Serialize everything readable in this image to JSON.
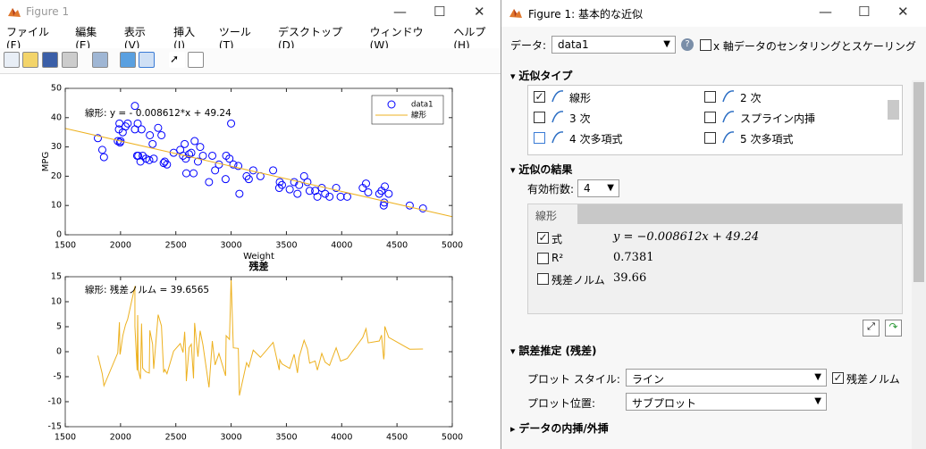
{
  "figure_window": {
    "title": "Figure 1",
    "menu": [
      "ファイル(F)",
      "編集(E)",
      "表示(V)",
      "挿入(I)",
      "ツール(T)",
      "デスクトップ(D)",
      "ウィンドウ(W)",
      "ヘルプ(H)"
    ]
  },
  "chart_data": [
    {
      "type": "scatter",
      "xlabel": "Weight",
      "ylabel": "MPG",
      "annotation": "線形:  y = - 0.008612*x + 49.24",
      "xlim": [
        1500,
        5000
      ],
      "ylim": [
        0,
        50
      ],
      "xticks": [
        1500,
        2000,
        2500,
        3000,
        3500,
        4000,
        4500,
        5000
      ],
      "yticks": [
        0,
        10,
        20,
        30,
        40,
        50
      ],
      "legend": "northeast",
      "series": [
        {
          "name": "data1",
          "type": "scatter",
          "color": "#0000ff",
          "x": [
            1795,
            1835,
            1850,
            1975,
            1985,
            1990,
            1995,
            2000,
            2020,
            2045,
            2065,
            2130,
            2130,
            2150,
            2155,
            2160,
            2180,
            2190,
            2200,
            2230,
            2260,
            2265,
            2290,
            2300,
            2340,
            2370,
            2390,
            2400,
            2420,
            2480,
            2540,
            2565,
            2580,
            2590,
            2595,
            2620,
            2640,
            2660,
            2670,
            2700,
            2720,
            2745,
            2800,
            2830,
            2855,
            2890,
            2950,
            2955,
            2985,
            3000,
            3020,
            3065,
            3075,
            3140,
            3160,
            3200,
            3265,
            3380,
            3435,
            3440,
            3460,
            3530,
            3570,
            3600,
            3615,
            3660,
            3690,
            3710,
            3760,
            3780,
            3820,
            3850,
            3890,
            3950,
            3990,
            4050,
            4190,
            4220,
            4240,
            4340,
            4360,
            4380,
            4385,
            4390,
            4425,
            4615,
            4735
          ],
          "values": [
            33,
            29,
            26.5,
            32,
            36,
            38,
            31.5,
            32,
            35,
            37,
            38,
            44,
            36,
            27,
            38,
            27,
            25,
            36,
            27,
            26,
            25.5,
            34,
            31,
            26,
            36.5,
            34,
            24.5,
            25,
            24,
            28,
            29,
            27,
            31,
            26,
            21,
            27.5,
            28,
            21,
            32,
            25,
            30,
            27,
            18,
            27,
            22,
            24,
            19,
            27,
            26,
            38,
            24,
            23.5,
            14,
            20,
            19,
            22,
            20,
            22,
            16,
            18,
            17,
            15.5,
            18,
            14,
            17,
            20,
            18,
            15,
            15,
            13,
            16,
            14,
            13,
            16,
            13,
            13,
            16,
            17.5,
            14.5,
            14,
            15,
            10,
            11,
            16.5,
            14,
            10,
            9
          ]
        },
        {
          "name": "線形",
          "type": "line",
          "color": "#edb120",
          "x": [
            1500,
            5000
          ],
          "values": [
            36.32,
            6.18
          ]
        }
      ]
    },
    {
      "type": "line",
      "title": "残差",
      "annotation": "線形: 残差ノルム = 39.6565",
      "xlim": [
        1500,
        5000
      ],
      "ylim": [
        -15,
        15
      ],
      "xticks": [
        1500,
        2000,
        2500,
        3000,
        3500,
        4000,
        4500,
        5000
      ],
      "yticks": [
        -15,
        -10,
        -5,
        0,
        5,
        10,
        15
      ],
      "series": [
        {
          "color": "#edb120",
          "x": [
            1795,
            1835,
            1850,
            1975,
            1985,
            1990,
            1995,
            2000,
            2020,
            2045,
            2065,
            2130,
            2130,
            2150,
            2155,
            2160,
            2180,
            2190,
            2200,
            2230,
            2260,
            2265,
            2290,
            2300,
            2340,
            2370,
            2390,
            2400,
            2420,
            2480,
            2540,
            2565,
            2580,
            2590,
            2595,
            2620,
            2640,
            2660,
            2670,
            2700,
            2720,
            2745,
            2800,
            2830,
            2855,
            2890,
            2950,
            2955,
            2985,
            3000,
            3020,
            3065,
            3075,
            3140,
            3160,
            3200,
            3265,
            3380,
            3435,
            3440,
            3460,
            3530,
            3570,
            3600,
            3615,
            3660,
            3690,
            3710,
            3760,
            3780,
            3820,
            3850,
            3890,
            3950,
            3990,
            4050,
            4190,
            4220,
            4240,
            4340,
            4360,
            4380,
            4385,
            4390,
            4425,
            4615,
            4735
          ],
          "values": [
            -0.78,
            -4.44,
            -6.81,
            -0.23,
            3.85,
            5.9,
            -0.56,
            -0.02,
            3.16,
            5.37,
            6.54,
            13.1,
            5.1,
            -3.72,
            7.32,
            -3.64,
            -5.47,
            5.62,
            -3.29,
            -4.04,
            -4.28,
            4.27,
            1.48,
            -3.43,
            7.41,
            5.17,
            -4.16,
            -3.57,
            -4.4,
            0.12,
            1.63,
            -0.15,
            3.98,
            -0.94,
            -5.89,
            0.82,
            1.5,
            -5.33,
            5.75,
            -0.99,
            4.18,
            1.4,
            -7.13,
            2.13,
            -2.65,
            -0.35,
            -4.83,
            3.21,
            2.47,
            14.6,
            0.77,
            0.66,
            -8.76,
            -2.2,
            -3.03,
            0.32,
            -1.12,
            1.87,
            -3.66,
            -1.62,
            -2.44,
            -3.34,
            -0.5,
            -4.24,
            -1.11,
            2.28,
            0.54,
            -2.29,
            -1.86,
            -3.69,
            -0.34,
            -2.08,
            -2.74,
            0.78,
            -1.88,
            -1.36,
            2.84,
            4.6,
            1.77,
            2.14,
            3.31,
            -1.52,
            -0.48,
            5.07,
            2.87,
            0.5,
            0.54
          ]
        }
      ]
    }
  ],
  "fitting_panel": {
    "title": "Figure 1: 基本的な近似",
    "data_label": "データ:",
    "data_value": "data1",
    "center_scale": {
      "label": "x 軸データのセンタリングとスケーリング",
      "checked": false
    },
    "fit_type_section": "近似タイプ",
    "fit_types": [
      {
        "label": "線形",
        "checked": true
      },
      {
        "label": "2 次",
        "checked": false
      },
      {
        "label": "3 次",
        "checked": false
      },
      {
        "label": "スプライン内挿",
        "checked": false
      },
      {
        "label": "4 次多項式",
        "checked": false
      },
      {
        "label": "5 次多項式",
        "checked": false
      }
    ],
    "results_section": "近似の結果",
    "digits_label": "有効桁数:",
    "digits_value": "4",
    "results_tab": "線形",
    "results": [
      {
        "label": "式",
        "value": "y = −0.008612x + 49.24",
        "checked": true
      },
      {
        "label": "R²",
        "value": "0.7381",
        "checked": false
      },
      {
        "label": "残差ノルム",
        "value": "39.66",
        "checked": false
      }
    ],
    "error_section": "誤差推定 (残差)",
    "plot_style_label": "プロット スタイル:",
    "plot_style_value": "ライン",
    "residual_norm": {
      "label": "残差ノルム",
      "checked": true
    },
    "plot_location_label": "プロット位置:",
    "plot_location_value": "サブプロット",
    "interp_section": "データの内挿/外挿"
  }
}
